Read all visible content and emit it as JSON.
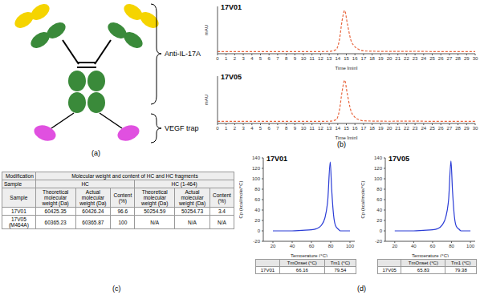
{
  "panel_labels": [
    "(a)",
    "(b)",
    "(c)",
    "(d)"
  ],
  "diagram": {
    "labels": [
      "Anti-IL-17A",
      "VEGF trap"
    ]
  },
  "chart_data": [
    {
      "type": "line",
      "title": "17V01",
      "x_label": "Time [min]",
      "y_label": "mAU",
      "xlim": [
        0,
        30
      ],
      "xticks": [
        0,
        1,
        2,
        3,
        4,
        5,
        6,
        7,
        8,
        9,
        10,
        11,
        12,
        13,
        14,
        15,
        16,
        17,
        18,
        19,
        20,
        21,
        22,
        23,
        24,
        25,
        26,
        27,
        28,
        29,
        30
      ],
      "ylim": [
        -5,
        110
      ],
      "tick_labels": "x",
      "grid": false,
      "color": "#e8643c",
      "line_style": "dashed",
      "x": [
        0,
        5,
        10,
        13,
        13.8,
        14.2,
        14.5,
        14.8,
        15.1,
        15.5,
        16,
        16.5,
        17,
        18,
        20,
        23,
        25,
        30
      ],
      "values": [
        0,
        0,
        0,
        0.5,
        5,
        30,
        75,
        100,
        70,
        30,
        12,
        5,
        2,
        1,
        0.5,
        0.8,
        0.3,
        0.2
      ]
    },
    {
      "type": "line",
      "title": "17V05",
      "x_label": "Time [min]",
      "y_label": "mAU",
      "xlim": [
        0,
        30
      ],
      "xticks": [
        0,
        1,
        2,
        3,
        4,
        5,
        6,
        7,
        8,
        9,
        10,
        11,
        12,
        13,
        14,
        15,
        16,
        17,
        18,
        19,
        20,
        21,
        22,
        23,
        24,
        25,
        26,
        27,
        28,
        29,
        30
      ],
      "ylim": [
        -5,
        110
      ],
      "tick_labels": "x",
      "grid": false,
      "color": "#e8643c",
      "line_style": "dashed",
      "x": [
        0,
        5,
        10,
        13,
        13.8,
        14.2,
        14.5,
        14.8,
        15.1,
        15.5,
        16,
        16.5,
        17,
        18,
        20,
        23,
        25,
        30
      ],
      "values": [
        0,
        0,
        0,
        0.4,
        4,
        28,
        72,
        100,
        68,
        28,
        10,
        4,
        1.5,
        0.8,
        0.4,
        0.6,
        0.2,
        0.1
      ]
    },
    {
      "type": "line",
      "title": "17V01",
      "x_label": "Temperature (°C)",
      "y_label": "Cp (kcal/mole/°C)",
      "xlim": [
        10,
        105
      ],
      "xticks": [
        20,
        40,
        60,
        80,
        100
      ],
      "ylim": [
        -20,
        140
      ],
      "yticks": [
        -20,
        0,
        20,
        40,
        60,
        80,
        100,
        120,
        140
      ],
      "grid": false,
      "color": "#2a3cd6",
      "line_style": "solid",
      "x": [
        20,
        30,
        40,
        50,
        60,
        65,
        70,
        74,
        77,
        79.5,
        81,
        83,
        85,
        88,
        90,
        95,
        100
      ],
      "values": [
        0,
        0,
        0,
        1,
        2,
        4,
        10,
        25,
        60,
        132,
        80,
        30,
        10,
        3,
        0,
        0,
        0
      ],
      "table": {
        "columns": [
          "TmOnset (°C)",
          "Tm1 (°C)"
        ],
        "rows": [
          [
            "17V01",
            "66.16",
            "79.54"
          ]
        ]
      }
    },
    {
      "type": "line",
      "title": "17V05",
      "x_label": "Temperature (°C)",
      "y_label": "Cp (kcal/mole/°C)",
      "xlim": [
        10,
        105
      ],
      "xticks": [
        20,
        40,
        60,
        80,
        100
      ],
      "ylim": [
        -20,
        140
      ],
      "yticks": [
        -20,
        0,
        20,
        40,
        60,
        80,
        100,
        120,
        140
      ],
      "grid": false,
      "color": "#2a3cd6",
      "line_style": "solid",
      "x": [
        20,
        30,
        40,
        50,
        60,
        65,
        70,
        74,
        77,
        79.4,
        81,
        83,
        85,
        88,
        90,
        95,
        100
      ],
      "values": [
        0,
        0,
        0,
        1,
        2,
        4,
        11,
        27,
        62,
        134,
        78,
        28,
        9,
        3,
        0,
        0,
        0
      ],
      "table": {
        "columns": [
          "TmOnset (°C)",
          "Tm1 (°C)"
        ],
        "rows": [
          [
            "17V05",
            "65.83",
            "79.38"
          ]
        ]
      }
    }
  ],
  "table": {
    "corner": [
      "Modification",
      "Sample"
    ],
    "group": "Molecular weight and content of HC and HC fragments",
    "subgroups": [
      "HC",
      "HC (1-464)"
    ],
    "row_header": "Sample",
    "columns": [
      "Theoretical molecular weight (Da)",
      "Actual molecular weight (Da)",
      "Content (%)",
      "Theoretical molecular weight (Da)",
      "Actual molecular weight (Da)",
      "Content (%)"
    ],
    "rows": [
      [
        "17V01",
        "60425.35",
        "60426.24",
        "96.6",
        "50254.59",
        "50254.73",
        "3.4"
      ],
      [
        "17V05 (M464A)",
        "60365.23",
        "60365.87",
        "100",
        "N/A",
        "N/A",
        "N/A"
      ]
    ]
  }
}
